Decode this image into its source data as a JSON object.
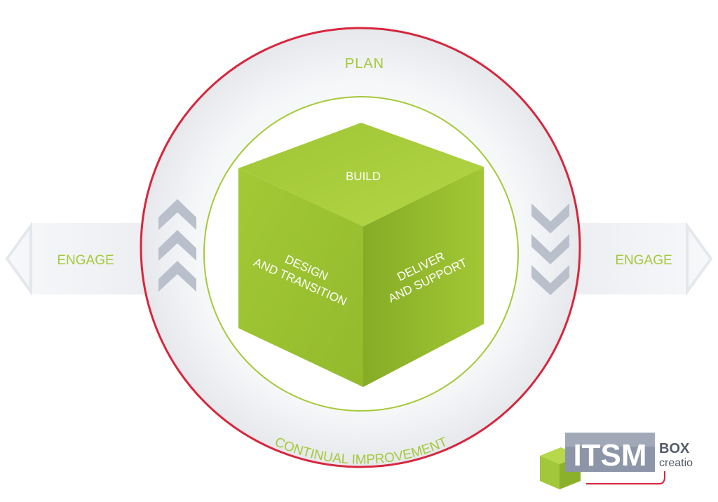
{
  "diagram": {
    "outer_ring_label": "PLAN",
    "bottom_arc_label": "CONTINUAL IMPROVEMENT",
    "left_arrow_label": "ENGAGE",
    "right_arrow_label": "ENGAGE",
    "cube": {
      "top_face_label": "BUILD",
      "left_face_line1": "DESIGN",
      "left_face_line2": "AND TRANSITION",
      "right_face_line1": "DELIVER",
      "right_face_line2": "AND SUPPORT"
    }
  },
  "logo": {
    "main_text": "ITSM",
    "box_text": "BOX",
    "sub_text": "creatio"
  },
  "colors": {
    "outer_ring": "#d7263d",
    "inner_ring": "#a5c93a",
    "label_green": "#a5c93a",
    "cube_top": "#a9cd3c",
    "cube_left": "#9dc432",
    "cube_right": "#86ac26",
    "chevron_gray": "#b9c0cb",
    "arrow_fill": "#eef0f3"
  }
}
